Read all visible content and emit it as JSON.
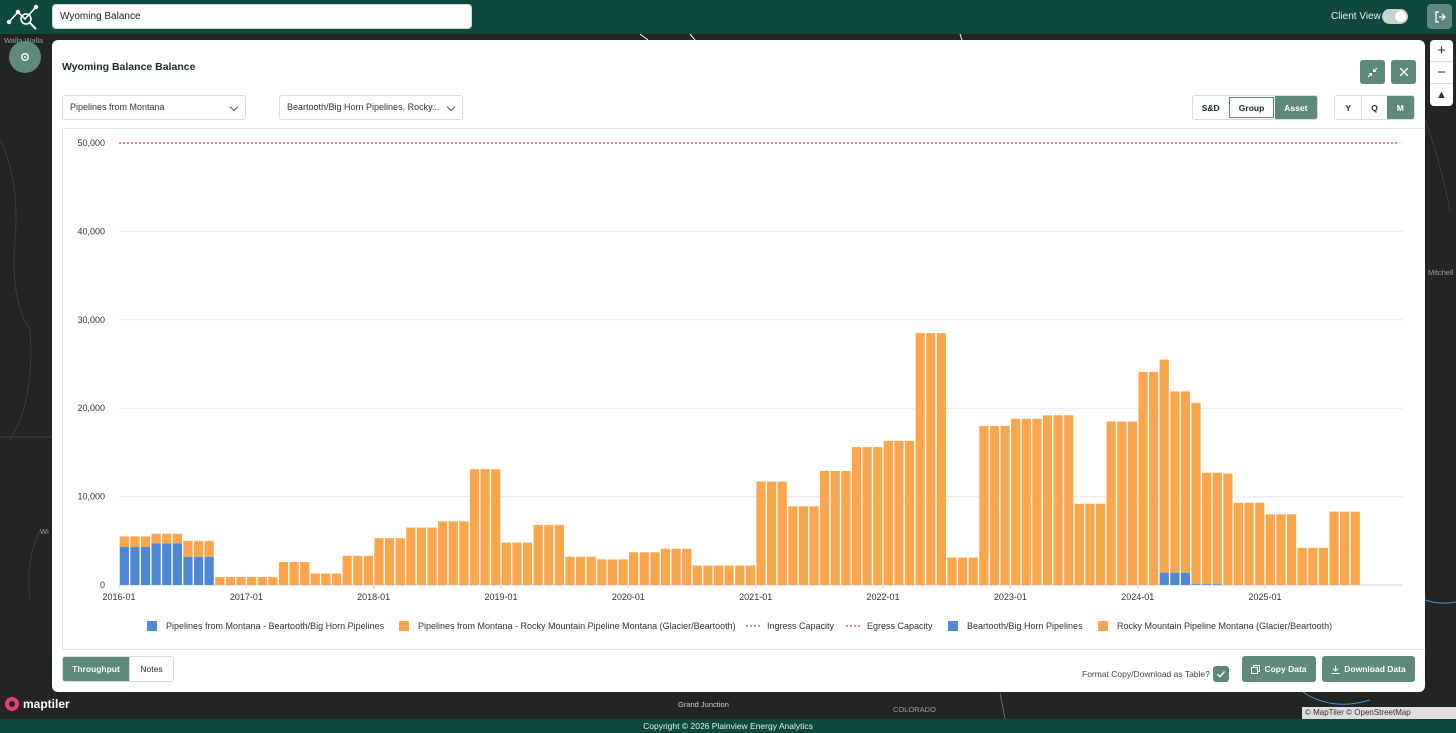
{
  "app": {
    "search_value": "Wyoming Balance",
    "client_view_label": "Client View",
    "client_view_on": true
  },
  "map": {
    "labels": [
      "Walla Walla",
      "Mitchell",
      "Grand Junction",
      "COLORADO",
      "Wi"
    ],
    "maptiler_logo": "maptiler",
    "attribution": "© MapTiler © OpenStreetMap contributors"
  },
  "modal": {
    "title": "Wyoming Balance Balance",
    "select_region": "Pipelines from Montana",
    "select_asset": "Beartooth/Big Horn Pipelines, Rocky...",
    "view_buttons": [
      "S&D",
      "Group",
      "Asset"
    ],
    "view_active": "Asset",
    "view_focused": "Group",
    "freq_buttons": [
      "Y",
      "Q",
      "M"
    ],
    "freq_active": "M",
    "tabs": [
      "Throughput",
      "Notes"
    ],
    "tab_active": "Throughput",
    "format_label": "Format Copy/Download as Table?",
    "copy_label": "Copy Data",
    "download_label": "Download Data"
  },
  "footer": "Copyright © 2026 Plainview Energy Analytics",
  "icons": [
    "logo-icon",
    "exit-icon",
    "gear-icon",
    "minimize-icon",
    "close-icon",
    "chevron-down-icon",
    "check-icon",
    "copy-icon",
    "download-icon",
    "zoom-in-icon",
    "zoom-out-icon",
    "compass-icon",
    "maptiler-logo-icon"
  ],
  "colors": {
    "brand": "#0b4a3d",
    "accent": "#5e8a7e",
    "orange": "#fba54d",
    "blue": "#4d89d6",
    "capacity": "#e23b3b"
  },
  "chart_data": {
    "type": "bar",
    "stacked": true,
    "x_tick_labels": [
      "2016-01",
      "2017-01",
      "2018-01",
      "2019-01",
      "2020-01",
      "2021-01",
      "2022-01",
      "2023-01",
      "2024-01",
      "2025-01"
    ],
    "x_start": "2016-01",
    "ylim": [
      0,
      50000
    ],
    "y_ticks": [
      "0",
      "10,000",
      "20,000",
      "30,000",
      "40,000",
      "50,000"
    ],
    "grid": true,
    "legend_position": "bottom",
    "legend": [
      {
        "name": "Pipelines from Montana - Beartooth/Big Horn Pipelines",
        "marker": "square",
        "color": "#4d89d6"
      },
      {
        "name": "Pipelines from Montana - Rocky Mountain Pipeline Montana (Glacier/Beartooth)",
        "marker": "square",
        "color": "#fba54d"
      },
      {
        "name": "Ingress Capacity",
        "marker": "dotted",
        "color": "#e23b3b"
      },
      {
        "name": "Egress Capacity",
        "marker": "dotted",
        "color": "#e23b3b"
      },
      {
        "name": "Beartooth/Big Horn Pipelines",
        "marker": "square",
        "color": "#4d89d6"
      },
      {
        "name": "Rocky Mountain Pipeline Montana (Glacier/Beartooth)",
        "marker": "square",
        "color": "#fba54d"
      }
    ],
    "capacity_line": 50000,
    "series": [
      {
        "name": "Pipelines from Montana - Beartooth/Big Horn Pipelines",
        "color": "#4d89d6",
        "values": [
          4300,
          4300,
          4300,
          4700,
          4700,
          4700,
          3200,
          3200,
          3200,
          0,
          0,
          0,
          0,
          0,
          0,
          0,
          0,
          0,
          0,
          0,
          0,
          0,
          0,
          0,
          0,
          0,
          0,
          0,
          0,
          0,
          0,
          0,
          0,
          0,
          0,
          0,
          0,
          0,
          0,
          0,
          0,
          0,
          0,
          0,
          0,
          0,
          0,
          0,
          0,
          0,
          0,
          0,
          0,
          0,
          0,
          0,
          0,
          0,
          0,
          0,
          0,
          0,
          0,
          0,
          0,
          0,
          0,
          0,
          0,
          0,
          0,
          0,
          0,
          0,
          0,
          0,
          0,
          0,
          0,
          0,
          0,
          0,
          0,
          0,
          0,
          0,
          0,
          0,
          0,
          0,
          0,
          0,
          0,
          0,
          0,
          0,
          0,
          0,
          1400,
          1400,
          1400,
          100,
          100,
          100,
          0,
          0,
          0,
          0,
          0,
          0,
          0,
          0,
          0,
          0,
          0,
          0,
          0,
          0,
          0,
          0,
          0
        ]
      },
      {
        "name": "Pipelines from Montana - Rocky Mountain Pipeline Montana (Glacier/Beartooth)",
        "color": "#fba54d",
        "values": [
          1200,
          1200,
          1200,
          1100,
          1100,
          1100,
          1800,
          1800,
          1800,
          900,
          900,
          900,
          900,
          900,
          900,
          2600,
          2600,
          2600,
          1300,
          1300,
          1300,
          3300,
          3300,
          3300,
          5300,
          5300,
          5300,
          6500,
          6500,
          6500,
          7200,
          7200,
          7200,
          13100,
          13100,
          13100,
          4800,
          4800,
          4800,
          6800,
          6800,
          6800,
          3200,
          3200,
          3200,
          2900,
          2900,
          2900,
          3700,
          3700,
          3700,
          4100,
          4100,
          4100,
          2200,
          2200,
          2200,
          2200,
          2200,
          2200,
          11700,
          11700,
          11700,
          8900,
          8900,
          8900,
          12900,
          12900,
          12900,
          15600,
          15600,
          15600,
          16300,
          16300,
          16300,
          28500,
          28500,
          28500,
          3100,
          3100,
          3100,
          18000,
          18000,
          18000,
          18800,
          18800,
          18800,
          19200,
          19200,
          19200,
          9200,
          9200,
          9200,
          18500,
          18500,
          18500,
          24100,
          24100,
          24100,
          20500,
          20500,
          20500,
          12600,
          12600,
          12600,
          9300,
          9300,
          9300,
          8000,
          8000,
          8000,
          4200,
          4200,
          4200,
          8300,
          8300,
          8300
        ]
      }
    ]
  }
}
